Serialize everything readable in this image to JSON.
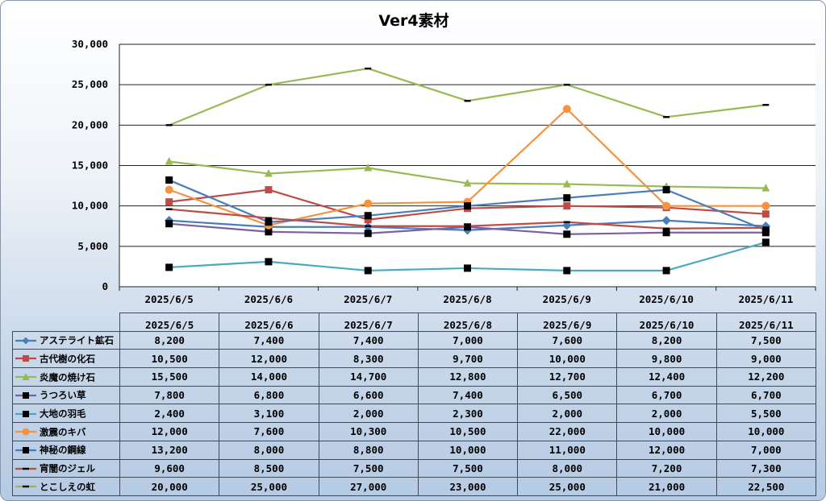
{
  "chart_data": {
    "type": "line",
    "title": "Ver4素材",
    "categories": [
      "2025/6/5",
      "2025/6/6",
      "2025/6/7",
      "2025/6/8",
      "2025/6/9",
      "2025/6/10",
      "2025/6/11"
    ],
    "ylim": [
      0,
      30000
    ],
    "yticks": [
      "0",
      "5,000",
      "10,000",
      "15,000",
      "20,000",
      "25,000",
      "30,000"
    ],
    "ytick_values": [
      0,
      5000,
      10000,
      15000,
      20000,
      25000,
      30000
    ],
    "grid": true,
    "legend": "data-table",
    "series": [
      {
        "name": "アステライト鉱石",
        "color": "#4a7ebb",
        "marker": "diamond",
        "values": [
          8200,
          7400,
          7400,
          7000,
          7600,
          8200,
          7500
        ],
        "labels": [
          "8,200",
          "7,400",
          "7,400",
          "7,000",
          "7,600",
          "8,200",
          "7,500"
        ]
      },
      {
        "name": "古代樹の化石",
        "color": "#be4b48",
        "marker": "square",
        "values": [
          10500,
          12000,
          8300,
          9700,
          10000,
          9800,
          9000
        ],
        "labels": [
          "10,500",
          "12,000",
          "8,300",
          "9,700",
          "10,000",
          "9,800",
          "9,000"
        ]
      },
      {
        "name": "炎魔の焼け石",
        "color": "#98b954",
        "marker": "triangle",
        "values": [
          15500,
          14000,
          14700,
          12800,
          12700,
          12400,
          12200
        ],
        "labels": [
          "15,500",
          "14,000",
          "14,700",
          "12,800",
          "12,700",
          "12,400",
          "12,200"
        ]
      },
      {
        "name": "うつろい草",
        "color": "#7d60a0",
        "marker": "square-black",
        "values": [
          7800,
          6800,
          6600,
          7400,
          6500,
          6700,
          6700
        ],
        "labels": [
          "7,800",
          "6,800",
          "6,600",
          "7,400",
          "6,500",
          "6,700",
          "6,700"
        ]
      },
      {
        "name": "大地の羽毛",
        "color": "#46aac5",
        "marker": "square-black",
        "values": [
          2400,
          3100,
          2000,
          2300,
          2000,
          2000,
          5500
        ],
        "labels": [
          "2,400",
          "3,100",
          "2,000",
          "2,300",
          "2,000",
          "2,000",
          "5,500"
        ]
      },
      {
        "name": "激震のキバ",
        "color": "#f69240",
        "marker": "circle",
        "values": [
          12000,
          7600,
          10300,
          10500,
          22000,
          10000,
          10000
        ],
        "labels": [
          "12,000",
          "7,600",
          "10,300",
          "10,500",
          "22,000",
          "10,000",
          "10,000"
        ]
      },
      {
        "name": "神秘の鋼線",
        "color": "#4a7ebb",
        "marker": "square-black",
        "values": [
          13200,
          8000,
          8800,
          10000,
          11000,
          12000,
          7000
        ],
        "labels": [
          "13,200",
          "8,000",
          "8,800",
          "10,000",
          "11,000",
          "12,000",
          "7,000"
        ]
      },
      {
        "name": "宵闇のジェル",
        "color": "#be4b48",
        "marker": "dash",
        "values": [
          9600,
          8500,
          7500,
          7500,
          8000,
          7200,
          7300
        ],
        "labels": [
          "9,600",
          "8,500",
          "7,500",
          "7,500",
          "8,000",
          "7,200",
          "7,300"
        ]
      },
      {
        "name": "とこしえの虹",
        "color": "#98b954",
        "marker": "dash",
        "values": [
          20000,
          25000,
          27000,
          23000,
          25000,
          21000,
          22500
        ],
        "labels": [
          "20,000",
          "25,000",
          "27,000",
          "23,000",
          "25,000",
          "21,000",
          "22,500"
        ]
      }
    ]
  }
}
